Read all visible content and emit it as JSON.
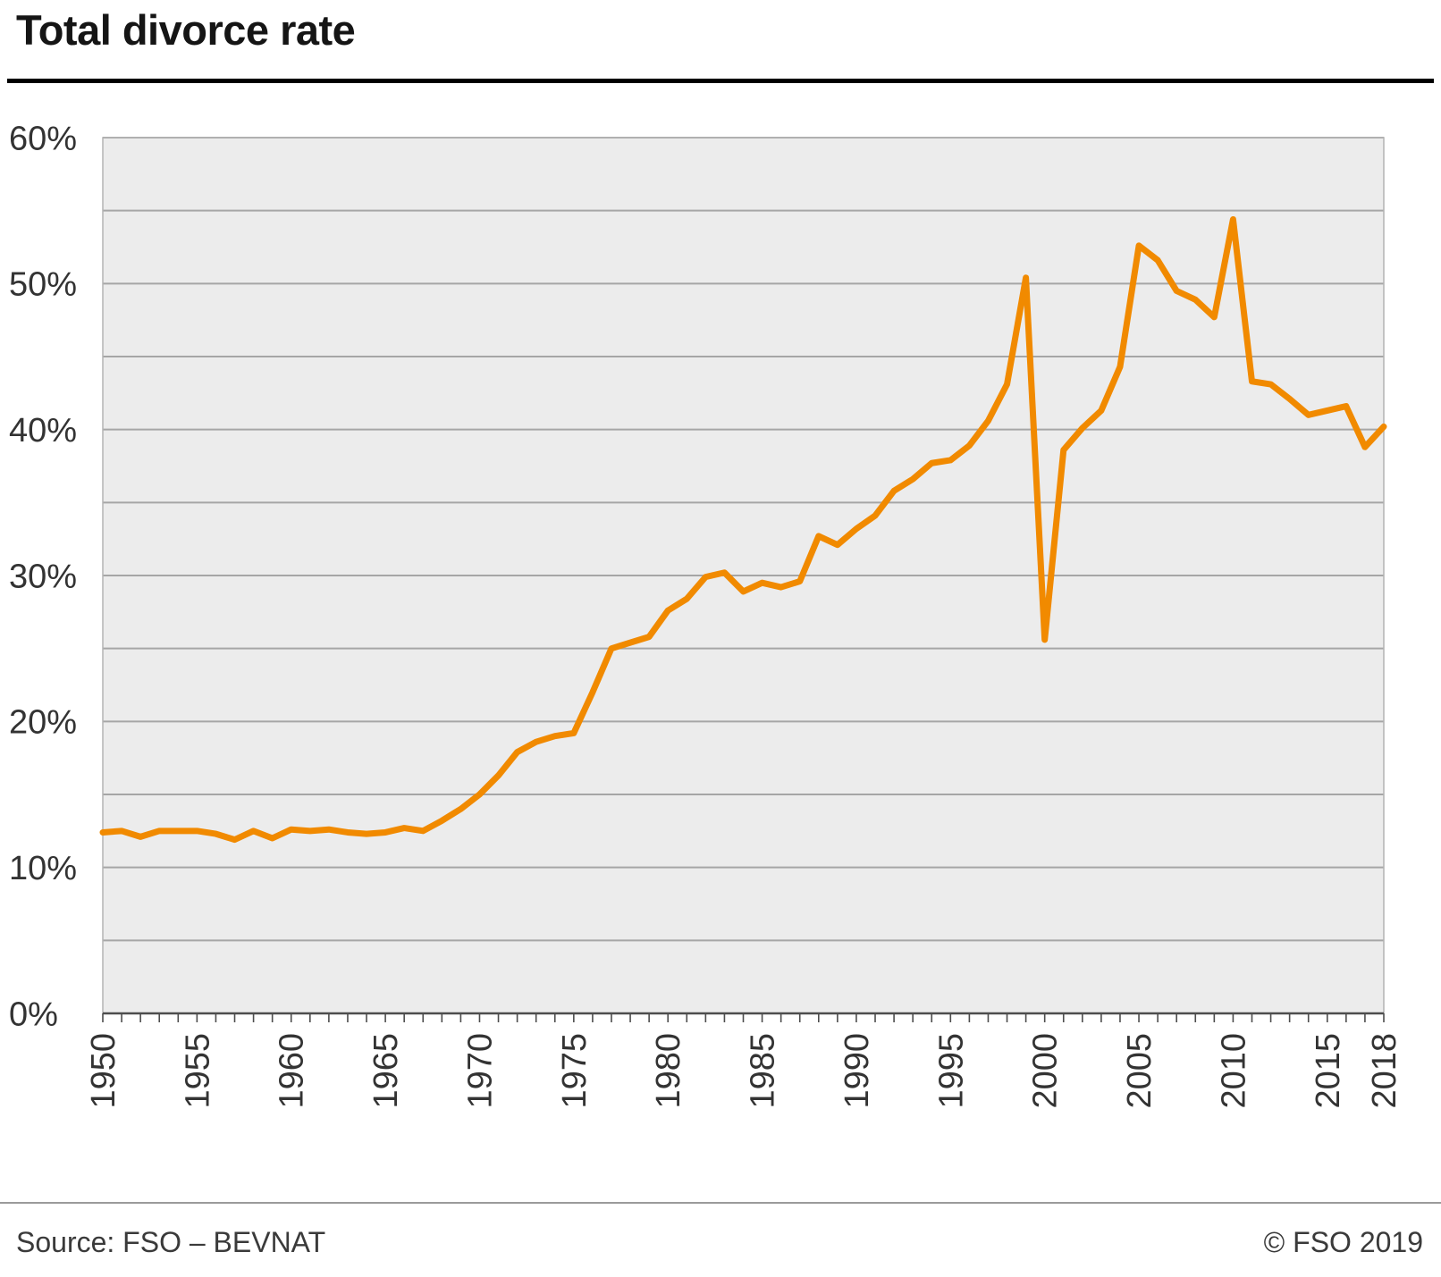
{
  "title": "Total divorce rate",
  "footer": {
    "source": "Source: FSO – BEVNAT",
    "copyright": "© FSO 2019"
  },
  "chart_data": {
    "type": "line",
    "title": "Total divorce rate",
    "xlabel": "",
    "ylabel": "",
    "ylim": [
      0,
      60
    ],
    "grid_step": 5,
    "yticks": [
      0,
      10,
      20,
      30,
      40,
      50,
      60
    ],
    "ytick_suffix": "%",
    "xticks": [
      1950,
      1955,
      1960,
      1965,
      1970,
      1975,
      1980,
      1985,
      1990,
      1995,
      2000,
      2005,
      2010,
      2015,
      2018
    ],
    "x": [
      1950,
      1951,
      1952,
      1953,
      1954,
      1955,
      1956,
      1957,
      1958,
      1959,
      1960,
      1961,
      1962,
      1963,
      1964,
      1965,
      1966,
      1967,
      1968,
      1969,
      1970,
      1971,
      1972,
      1973,
      1974,
      1975,
      1976,
      1977,
      1978,
      1979,
      1980,
      1981,
      1982,
      1983,
      1984,
      1985,
      1986,
      1987,
      1988,
      1989,
      1990,
      1991,
      1992,
      1993,
      1994,
      1995,
      1996,
      1997,
      1998,
      1999,
      2000,
      2001,
      2002,
      2003,
      2004,
      2005,
      2006,
      2007,
      2008,
      2009,
      2010,
      2011,
      2012,
      2013,
      2014,
      2015,
      2016,
      2017,
      2018
    ],
    "values": [
      12.4,
      12.5,
      12.1,
      12.5,
      12.5,
      12.5,
      12.3,
      11.9,
      12.5,
      12.0,
      12.6,
      12.5,
      12.6,
      12.4,
      12.3,
      12.4,
      12.7,
      12.5,
      13.2,
      14.0,
      15.0,
      16.3,
      17.9,
      18.6,
      19.0,
      19.2,
      22.0,
      25.0,
      25.4,
      25.8,
      27.6,
      28.4,
      29.9,
      30.2,
      28.9,
      29.5,
      29.2,
      29.6,
      32.7,
      32.1,
      33.2,
      34.1,
      35.8,
      36.6,
      37.7,
      37.9,
      38.9,
      40.6,
      43.1,
      50.4,
      25.6,
      38.6,
      40.1,
      41.3,
      44.3,
      52.6,
      51.6,
      49.5,
      48.9,
      47.7,
      54.4,
      43.3,
      43.1,
      42.1,
      41.0,
      41.3,
      41.6,
      38.8,
      40.2
    ],
    "line_color": "#F18A00",
    "plot_bg": "#ececec",
    "grid_color": "#a6a6a6",
    "axis_color": "#4d4d4d",
    "label_color": "#333333",
    "legend": "none",
    "grid": "horizontal"
  }
}
